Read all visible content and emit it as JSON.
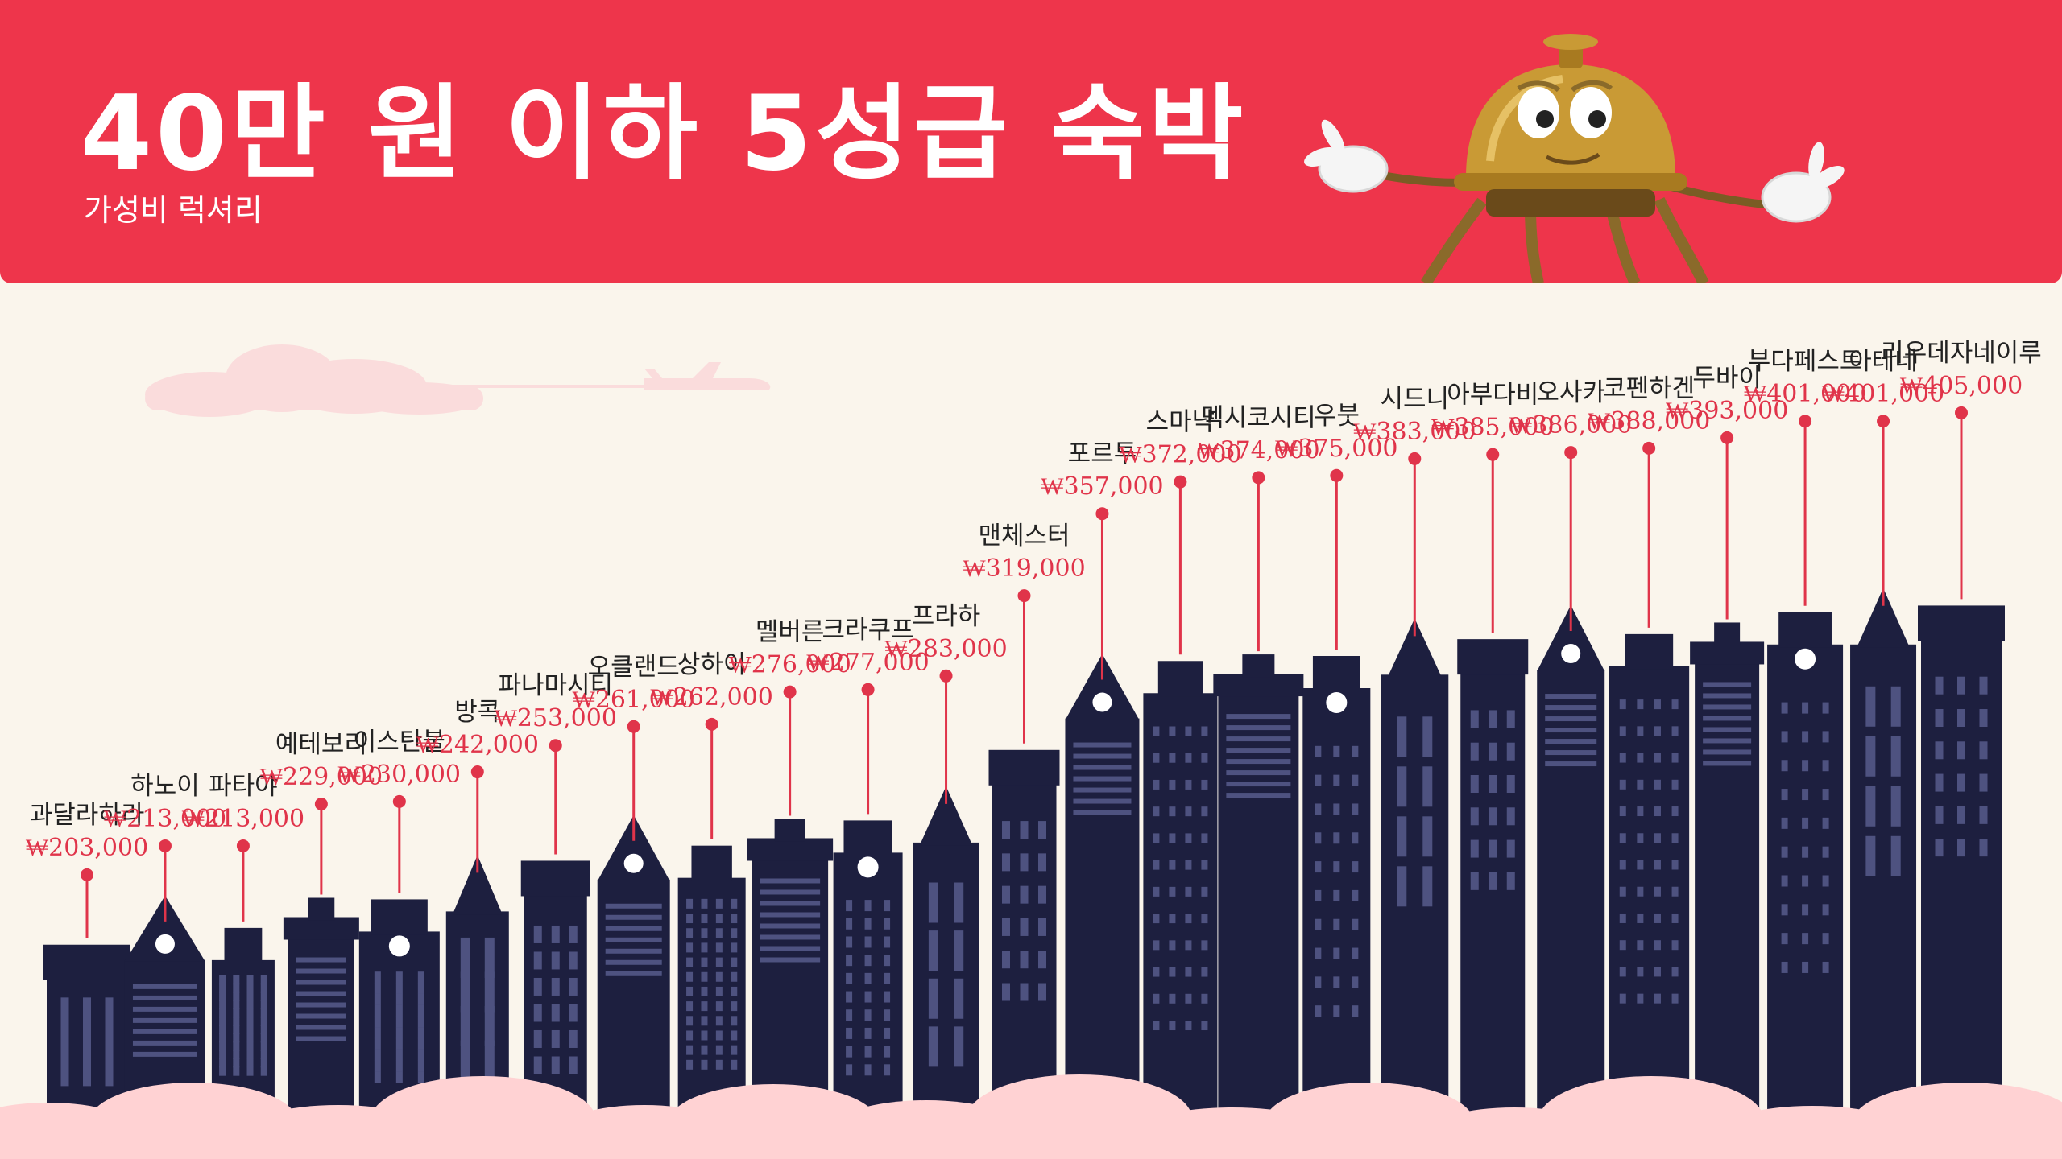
{
  "header": {
    "title": "40만 원 이하 5성급 숙박",
    "subtitle": "가성비 럭셔리"
  },
  "colors": {
    "header_red": "#ee354b",
    "background": "#faf5ec",
    "building": "#1d1f3f",
    "price_red": "#e0344a",
    "cloud_pink": "#ffd2d3"
  },
  "chart_data": {
    "type": "bar",
    "categories": [
      "과달라하라",
      "하노이",
      "파타야",
      "예테보리",
      "이스탄불",
      "방콕",
      "파나마시티",
      "오클랜드",
      "상하이",
      "멜버른",
      "크라쿠프",
      "프라하",
      "맨체스터",
      "포르투",
      "스마냑",
      "멕시코시티",
      "우붓",
      "시드니",
      "아부다비",
      "오사카",
      "코펜하겐",
      "두바이",
      "부다페스트",
      "아테네",
      "리우데자네이루"
    ],
    "values": [
      203000,
      213000,
      213000,
      229000,
      230000,
      242000,
      253000,
      261000,
      262000,
      276000,
      277000,
      283000,
      319000,
      357000,
      372000,
      374000,
      375000,
      383000,
      385000,
      386000,
      388000,
      393000,
      401000,
      401000,
      405000
    ],
    "labels": [
      "₩203,000",
      "₩213,000",
      "₩213,000",
      "₩229,000",
      "₩230,000",
      "₩242,000",
      "₩253,000",
      "₩261,000",
      "₩262,000",
      "₩276,000",
      "₩277,000",
      "₩283,000",
      "₩319,000",
      "₩357,000",
      "₩372,000",
      "₩374,000",
      "₩375,000",
      "₩383,000",
      "₩385,000",
      "₩386,000",
      "₩388,000",
      "₩393,000",
      "₩401,000",
      "₩401,000",
      "₩405,000"
    ],
    "title": "40만 원 이하 5성급 숙박",
    "subtitle": "가성비 럭셔리",
    "xlabel": "",
    "ylabel": "",
    "grid": false,
    "legend": "none"
  }
}
